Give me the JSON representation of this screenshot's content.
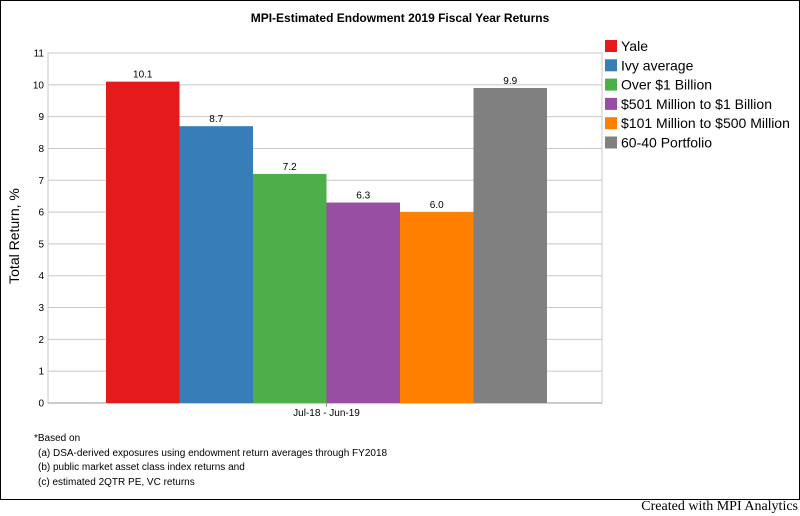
{
  "chart_data": {
    "type": "bar",
    "title": "MPI-Estimated Endowment 2019 Fiscal Year Returns",
    "ylabel": "Total Return, %",
    "xlabel": "",
    "categories": [
      "Jul-18 - Jun-19"
    ],
    "ylim": [
      0,
      11
    ],
    "yticks": [
      "0",
      "1",
      "2",
      "3",
      "4",
      "5",
      "6",
      "7",
      "8",
      "9",
      "10",
      "11"
    ],
    "grid": true,
    "legend_position": "top-right",
    "series": [
      {
        "name": "Yale",
        "values": [
          10.1
        ],
        "label": "10.1",
        "color": "#e41a1c"
      },
      {
        "name": "Ivy average",
        "values": [
          8.7
        ],
        "label": "8.7",
        "color": "#377eb8"
      },
      {
        "name": "Over $1 Billion",
        "values": [
          7.2
        ],
        "label": "7.2",
        "color": "#4daf4a"
      },
      {
        "name": "$501 Million to $1 Billion",
        "values": [
          6.3
        ],
        "label": "6.3",
        "color": "#984ea3"
      },
      {
        "name": "$101 Million to $500 Million",
        "values": [
          6.0
        ],
        "label": "6.0",
        "color": "#ff7f00"
      },
      {
        "name": "60-40 Portfolio",
        "values": [
          9.9
        ],
        "label": "9.9",
        "color": "#808080"
      }
    ]
  },
  "footnote": {
    "heading": "*Based on",
    "lines": [
      "(a) DSA-derived exposures using endowment return averages through FY2018",
      "(b) public market asset class index returns and",
      "(c) estimated 2QTR PE, VC returns"
    ]
  },
  "credit": "Created with MPI Analytics"
}
